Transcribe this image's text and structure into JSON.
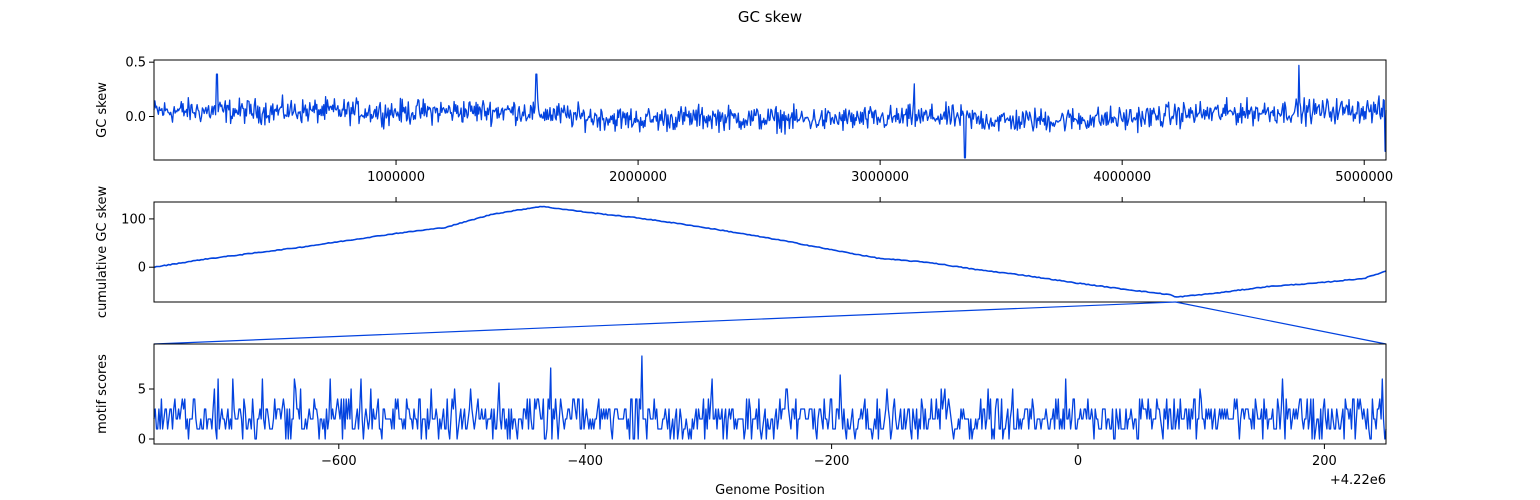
{
  "figure": {
    "title": "GC skew",
    "offset_text": "+4.22e6"
  },
  "colors": {
    "line": "#0343df",
    "axes": "#000000"
  },
  "chart_data": [
    {
      "type": "line",
      "name": "gc-skew",
      "xlabel": "",
      "ylabel": "GC skew",
      "xlim": [
        0,
        5090000
      ],
      "ylim": [
        -0.4,
        0.52
      ],
      "xticks": [
        1000000,
        2000000,
        3000000,
        4000000,
        5000000
      ],
      "xtick_labels": [
        "1000000",
        "2000000",
        "3000000",
        "4000000",
        "5000000"
      ],
      "xticks_position": "bottom",
      "yticks": [
        0.0,
        0.5
      ],
      "ytick_labels": [
        "0.0",
        "0.5"
      ],
      "series": [
        {
          "x": [
            0,
            250000,
            500000,
            750000,
            1000000,
            1250000,
            1500000,
            1750000,
            2000000,
            2250000,
            2500000,
            2750000,
            3000000,
            3250000,
            3500000,
            3750000,
            4000000,
            4250000,
            4500000,
            4750000,
            5000000,
            5090000
          ],
          "y": [
            0.05,
            0.05,
            0.05,
            0.05,
            0.04,
            0.05,
            0.05,
            0.0,
            -0.03,
            -0.01,
            -0.02,
            -0.03,
            -0.02,
            0.0,
            -0.04,
            -0.03,
            -0.02,
            0.02,
            0.04,
            0.05,
            0.06,
            0.05
          ],
          "noise_amplitude": 0.1,
          "spikes": [
            {
              "x": 260000,
              "y": 0.39
            },
            {
              "x": 1580000,
              "y": 0.39
            },
            {
              "x": 3140000,
              "y": 0.3
            },
            {
              "x": 3350000,
              "y": -0.38
            },
            {
              "x": 4730000,
              "y": 0.47
            },
            {
              "x": 5085000,
              "y": -0.32
            }
          ]
        }
      ]
    },
    {
      "type": "line",
      "name": "cumulative-gc-skew",
      "xlabel": "",
      "ylabel": "cumulative GC skew",
      "xlim": [
        0,
        5090000
      ],
      "ylim": [
        -72,
        135
      ],
      "xticks": [
        1000000,
        2000000,
        3000000,
        4000000,
        5000000
      ],
      "xticks_position": "top",
      "yticks": [
        0,
        100
      ],
      "ytick_labels": [
        "0",
        "100"
      ],
      "series": [
        {
          "x": [
            0,
            200000,
            600000,
            1000000,
            1200000,
            1400000,
            1600000,
            1800000,
            2000000,
            2200000,
            2400000,
            2600000,
            2800000,
            3000000,
            3200000,
            3400000,
            3600000,
            3800000,
            4000000,
            4200000,
            4220000,
            4400000,
            4600000,
            4800000,
            5000000,
            5090000
          ],
          "y": [
            0,
            16,
            41,
            70,
            82,
            110,
            126,
            113,
            102,
            88,
            72,
            55,
            36,
            18,
            10,
            -5,
            -17,
            -32,
            -45,
            -57,
            -62,
            -53,
            -40,
            -33,
            -23,
            -8
          ]
        }
      ]
    },
    {
      "type": "line",
      "name": "motif-scores",
      "xlabel": "Genome Position",
      "ylabel": "motif scores",
      "xlim": [
        -750,
        250
      ],
      "ylim": [
        -0.5,
        9.5
      ],
      "xticks": [
        -600,
        -400,
        -200,
        0,
        200
      ],
      "xtick_labels": [
        "−600",
        "−400",
        "−200",
        "0",
        "200"
      ],
      "yticks": [
        0,
        5
      ],
      "ytick_labels": [
        "0",
        "5"
      ],
      "series": [
        {
          "baseline": 2,
          "spikes": [
            {
              "x": -428,
              "y": 7.1
            },
            {
              "x": -354,
              "y": 8.3
            },
            {
              "x": -193,
              "y": 6.4
            },
            {
              "x": -470,
              "y": 5.6
            },
            {
              "x": -635,
              "y": 5
            }
          ]
        }
      ]
    }
  ],
  "zoom": {
    "from_x": 4220000,
    "range": [
      -750,
      250
    ]
  }
}
